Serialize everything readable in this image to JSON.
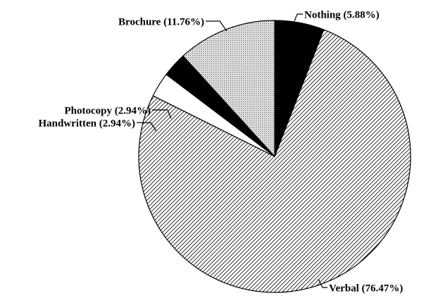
{
  "chart_data": {
    "type": "pie",
    "categories": [
      "Nothing (5.88%)",
      "Verbal (76.47%)",
      "Handwritten (2.94%)",
      "Photocopy (2.94%)",
      "Brochure (11.76%)"
    ],
    "values": [
      5.88,
      76.47,
      2.94,
      2.94,
      11.76
    ],
    "patterns": [
      "solid",
      "hatch",
      "none",
      "solid",
      "dots"
    ],
    "start_angle": 90,
    "direction": "clockwise"
  }
}
